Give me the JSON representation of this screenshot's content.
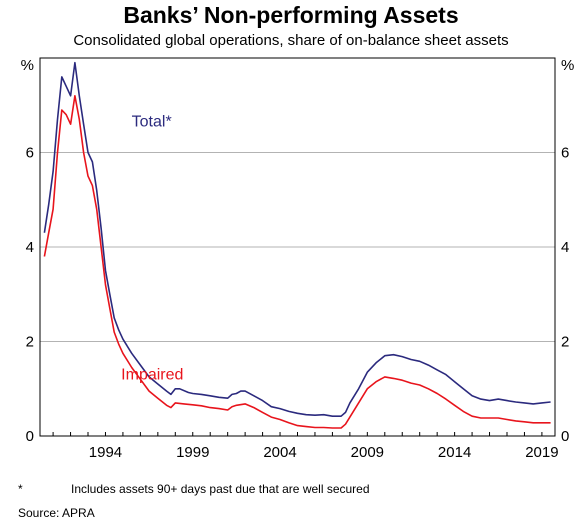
{
  "header": {
    "title": "Banks’ Non-performing Assets",
    "subtitle": "Consolidated global operations, share of on-balance sheet assets"
  },
  "footer": {
    "footnote_marker": "*",
    "footnote_text": "Includes assets 90+ days past due that are well secured",
    "source": "Source:   APRA"
  },
  "colors": {
    "total": "#2b2a7e",
    "impaired": "#e8141c",
    "grid": "#b3b3b3",
    "axis": "#000000"
  },
  "chart_data": {
    "type": "line",
    "title": "Banks’ Non-performing Assets",
    "subtitle": "Consolidated global operations, share of on-balance sheet assets",
    "y_unit_left": "%",
    "y_unit_right": "%",
    "ylim": [
      0,
      8
    ],
    "y_ticks": [
      0,
      2,
      4,
      6
    ],
    "xlim": [
      1990.25,
      2019.75
    ],
    "x_ticks": [
      1994,
      1999,
      2004,
      2009,
      2014,
      2019
    ],
    "grid": true,
    "series": [
      {
        "name": "Total*",
        "color": "#2b2a7e",
        "points": [
          [
            1990.5,
            4.3
          ],
          [
            1990.75,
            4.9
          ],
          [
            1991.0,
            5.6
          ],
          [
            1991.25,
            6.7
          ],
          [
            1991.5,
            7.6
          ],
          [
            1991.75,
            7.4
          ],
          [
            1992.0,
            7.2
          ],
          [
            1992.25,
            7.9
          ],
          [
            1992.5,
            7.2
          ],
          [
            1992.75,
            6.6
          ],
          [
            1993.0,
            6.0
          ],
          [
            1993.25,
            5.8
          ],
          [
            1993.5,
            5.2
          ],
          [
            1993.75,
            4.4
          ],
          [
            1994.0,
            3.5
          ],
          [
            1994.25,
            3.0
          ],
          [
            1994.5,
            2.5
          ],
          [
            1994.75,
            2.25
          ],
          [
            1995.0,
            2.05
          ],
          [
            1995.5,
            1.75
          ],
          [
            1996.0,
            1.5
          ],
          [
            1996.5,
            1.25
          ],
          [
            1997.0,
            1.1
          ],
          [
            1997.5,
            0.95
          ],
          [
            1997.75,
            0.88
          ],
          [
            1998.0,
            1.0
          ],
          [
            1998.25,
            1.0
          ],
          [
            1998.75,
            0.92
          ],
          [
            1999.0,
            0.9
          ],
          [
            1999.5,
            0.88
          ],
          [
            2000.0,
            0.85
          ],
          [
            2000.5,
            0.82
          ],
          [
            2001.0,
            0.8
          ],
          [
            2001.25,
            0.88
          ],
          [
            2001.5,
            0.9
          ],
          [
            2001.75,
            0.95
          ],
          [
            2002.0,
            0.95
          ],
          [
            2002.5,
            0.85
          ],
          [
            2003.0,
            0.75
          ],
          [
            2003.5,
            0.62
          ],
          [
            2004.0,
            0.58
          ],
          [
            2004.5,
            0.52
          ],
          [
            2005.0,
            0.48
          ],
          [
            2005.5,
            0.45
          ],
          [
            2006.0,
            0.44
          ],
          [
            2006.5,
            0.45
          ],
          [
            2007.0,
            0.42
          ],
          [
            2007.5,
            0.42
          ],
          [
            2007.75,
            0.5
          ],
          [
            2008.0,
            0.7
          ],
          [
            2008.5,
            1.0
          ],
          [
            2009.0,
            1.35
          ],
          [
            2009.5,
            1.55
          ],
          [
            2010.0,
            1.7
          ],
          [
            2010.5,
            1.72
          ],
          [
            2011.0,
            1.68
          ],
          [
            2011.5,
            1.62
          ],
          [
            2012.0,
            1.58
          ],
          [
            2012.5,
            1.5
          ],
          [
            2013.0,
            1.4
          ],
          [
            2013.5,
            1.3
          ],
          [
            2014.0,
            1.15
          ],
          [
            2014.5,
            1.0
          ],
          [
            2015.0,
            0.85
          ],
          [
            2015.5,
            0.78
          ],
          [
            2016.0,
            0.75
          ],
          [
            2016.5,
            0.78
          ],
          [
            2017.0,
            0.75
          ],
          [
            2017.5,
            0.72
          ],
          [
            2018.0,
            0.7
          ],
          [
            2018.5,
            0.68
          ],
          [
            2019.0,
            0.7
          ],
          [
            2019.5,
            0.72
          ]
        ]
      },
      {
        "name": "Impaired",
        "color": "#e8141c",
        "points": [
          [
            1990.5,
            3.8
          ],
          [
            1990.75,
            4.3
          ],
          [
            1991.0,
            4.8
          ],
          [
            1991.25,
            6.0
          ],
          [
            1991.5,
            6.9
          ],
          [
            1991.75,
            6.8
          ],
          [
            1992.0,
            6.6
          ],
          [
            1992.25,
            7.2
          ],
          [
            1992.5,
            6.7
          ],
          [
            1992.75,
            6.0
          ],
          [
            1993.0,
            5.5
          ],
          [
            1993.25,
            5.3
          ],
          [
            1993.5,
            4.8
          ],
          [
            1993.75,
            4.0
          ],
          [
            1994.0,
            3.2
          ],
          [
            1994.25,
            2.7
          ],
          [
            1994.5,
            2.2
          ],
          [
            1994.75,
            1.95
          ],
          [
            1995.0,
            1.75
          ],
          [
            1995.5,
            1.45
          ],
          [
            1996.0,
            1.2
          ],
          [
            1996.5,
            0.95
          ],
          [
            1997.0,
            0.8
          ],
          [
            1997.5,
            0.65
          ],
          [
            1997.75,
            0.6
          ],
          [
            1998.0,
            0.7
          ],
          [
            1998.5,
            0.68
          ],
          [
            1999.0,
            0.66
          ],
          [
            1999.5,
            0.64
          ],
          [
            2000.0,
            0.6
          ],
          [
            2000.5,
            0.58
          ],
          [
            2001.0,
            0.55
          ],
          [
            2001.25,
            0.62
          ],
          [
            2001.5,
            0.65
          ],
          [
            2002.0,
            0.68
          ],
          [
            2002.5,
            0.6
          ],
          [
            2003.0,
            0.5
          ],
          [
            2003.5,
            0.4
          ],
          [
            2004.0,
            0.35
          ],
          [
            2004.5,
            0.28
          ],
          [
            2005.0,
            0.22
          ],
          [
            2005.5,
            0.2
          ],
          [
            2006.0,
            0.18
          ],
          [
            2006.5,
            0.18
          ],
          [
            2007.0,
            0.17
          ],
          [
            2007.5,
            0.17
          ],
          [
            2007.75,
            0.25
          ],
          [
            2008.0,
            0.4
          ],
          [
            2008.5,
            0.7
          ],
          [
            2009.0,
            1.0
          ],
          [
            2009.5,
            1.15
          ],
          [
            2010.0,
            1.25
          ],
          [
            2010.5,
            1.22
          ],
          [
            2011.0,
            1.18
          ],
          [
            2011.5,
            1.12
          ],
          [
            2012.0,
            1.08
          ],
          [
            2012.5,
            1.0
          ],
          [
            2013.0,
            0.9
          ],
          [
            2013.5,
            0.78
          ],
          [
            2014.0,
            0.65
          ],
          [
            2014.5,
            0.52
          ],
          [
            2015.0,
            0.42
          ],
          [
            2015.5,
            0.38
          ],
          [
            2016.0,
            0.38
          ],
          [
            2016.5,
            0.38
          ],
          [
            2017.0,
            0.35
          ],
          [
            2017.5,
            0.32
          ],
          [
            2018.0,
            0.3
          ],
          [
            2018.5,
            0.28
          ],
          [
            2019.0,
            0.28
          ],
          [
            2019.5,
            0.28
          ]
        ]
      }
    ],
    "annotations": [
      {
        "text": "Total*",
        "series": "Total*",
        "x": 1995.5,
        "y": 6.55
      },
      {
        "text": "Impaired",
        "series": "Impaired",
        "x": 1994.9,
        "y": 1.2
      }
    ]
  }
}
